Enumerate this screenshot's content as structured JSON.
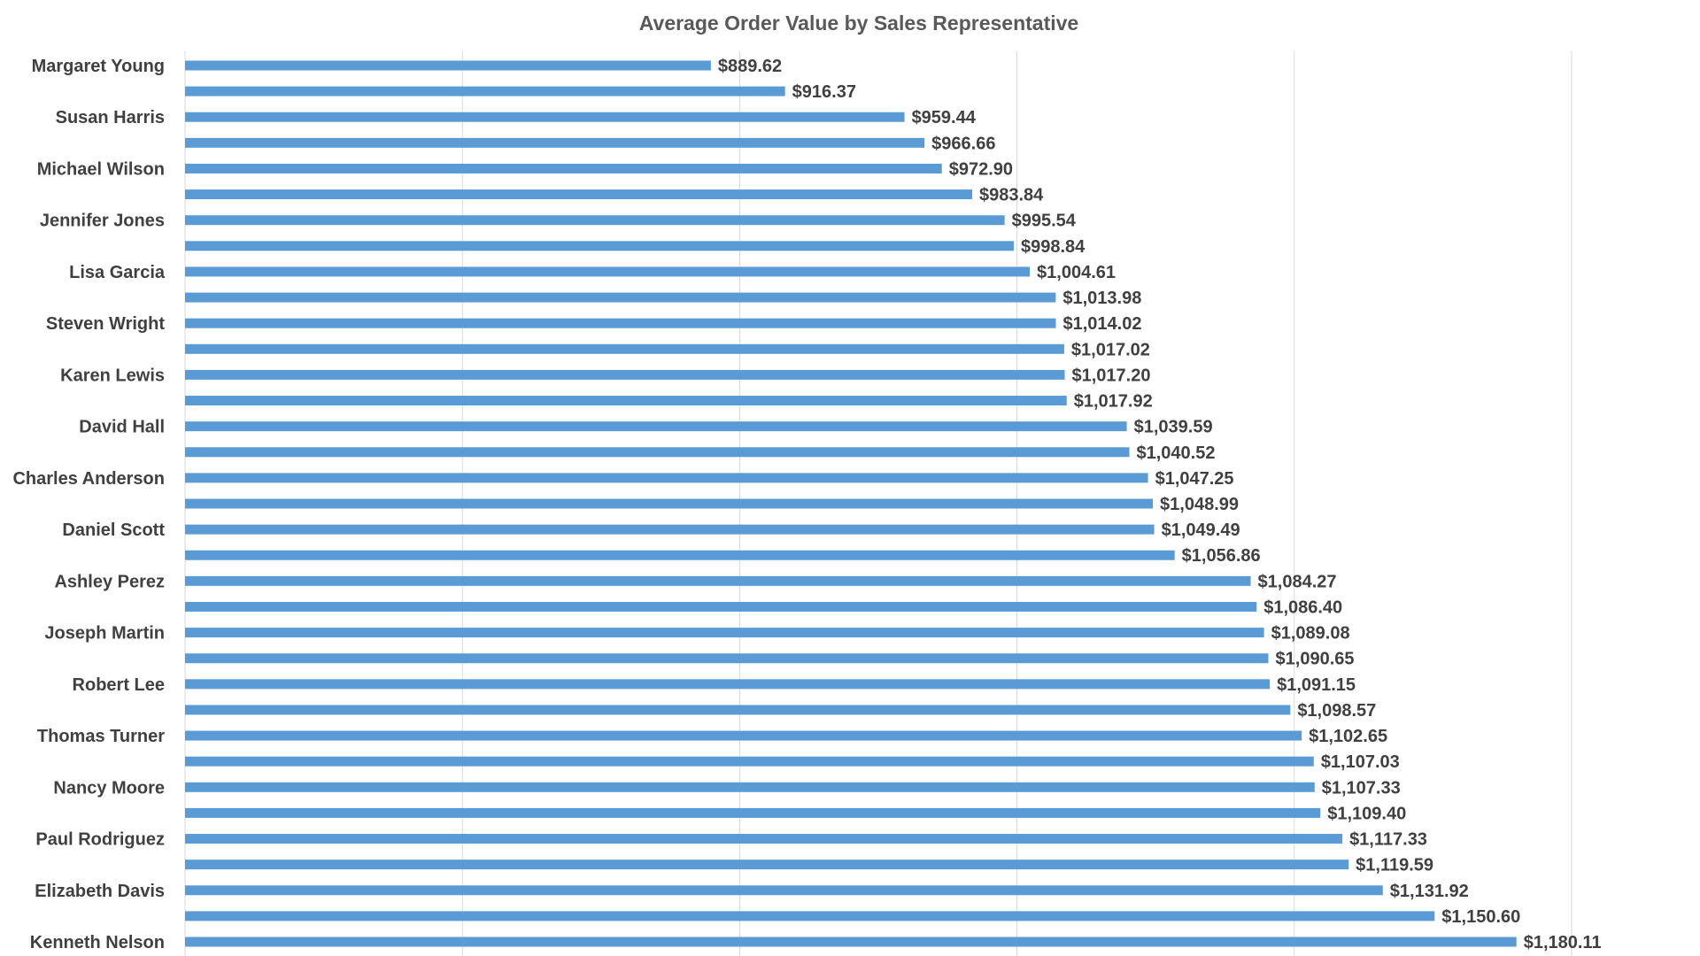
{
  "chart_data": {
    "type": "bar",
    "orientation": "horizontal",
    "title": "Average Order Value by Sales Representative",
    "xlabel": "",
    "ylabel": "",
    "categories": [
      "Margaret Young",
      "",
      "Susan Harris",
      "",
      "Michael Wilson",
      "",
      "Jennifer Jones",
      "",
      "Lisa Garcia",
      "",
      "Steven Wright",
      "",
      "Karen Lewis",
      "",
      "David Hall",
      "",
      "Charles Anderson",
      "",
      "Daniel Scott",
      "",
      "Ashley Perez",
      "",
      "Joseph Martin",
      "",
      "Robert Lee",
      "",
      "Thomas Turner",
      "",
      "Nancy Moore",
      "",
      "Paul Rodriguez",
      "",
      "Elizabeth Davis",
      "",
      "Kenneth Nelson"
    ],
    "values": [
      889.62,
      916.37,
      959.44,
      966.66,
      972.9,
      983.84,
      995.54,
      998.84,
      1004.61,
      1013.98,
      1014.02,
      1017.02,
      1017.2,
      1017.92,
      1039.59,
      1040.52,
      1047.25,
      1048.99,
      1049.49,
      1056.86,
      1084.27,
      1086.4,
      1089.08,
      1090.65,
      1091.15,
      1098.57,
      1102.65,
      1107.03,
      1107.33,
      1109.4,
      1117.33,
      1119.59,
      1131.92,
      1150.6,
      1180.11
    ],
    "value_labels": [
      "$889.62",
      "$916.37",
      "$959.44",
      "$966.66",
      "$972.90",
      "$983.84",
      "$995.54",
      "$998.84",
      "$1,004.61",
      "$1,013.98",
      "$1,014.02",
      "$1,017.02",
      "$1,017.20",
      "$1,017.92",
      "$1,039.59",
      "$1,040.52",
      "$1,047.25",
      "$1,048.99",
      "$1,049.49",
      "$1,056.86",
      "$1,084.27",
      "$1,086.40",
      "$1,089.08",
      "$1,090.65",
      "$1,091.15",
      "$1,098.57",
      "$1,102.65",
      "$1,107.03",
      "$1,107.33",
      "$1,109.40",
      "$1,117.33",
      "$1,119.59",
      "$1,131.92",
      "$1,150.60",
      "$1,180.11"
    ],
    "xlim": [
      700,
      1200
    ],
    "grid": true,
    "bar_color": "#5b9bd5",
    "legend": "none"
  }
}
